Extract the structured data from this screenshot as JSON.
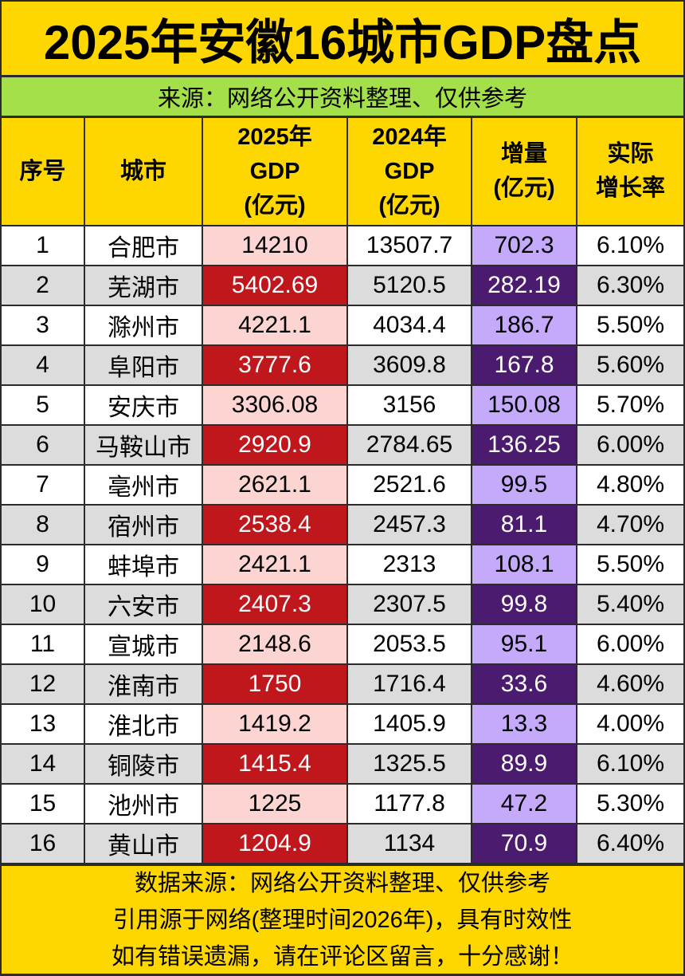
{
  "title": "2025年安徽16城市GDP盘点",
  "subtitle": "来源：网络公开资料整理、仅供参考",
  "colors": {
    "title_bg": "#ffd700",
    "subtitle_bg": "#a3e04a",
    "gdp25_light": "#fcd5d2",
    "gdp25_dark": "#c0171c",
    "increase_light": "#c5a9fb",
    "increase_dark": "#4b1b70",
    "row_alt": "#dcdcdc"
  },
  "table": {
    "headers": [
      {
        "lines": [
          "序号"
        ]
      },
      {
        "lines": [
          "城市"
        ]
      },
      {
        "lines": [
          "2025年",
          "GDP",
          "(亿元)"
        ]
      },
      {
        "lines": [
          "2024年",
          "GDP",
          "(亿元)"
        ]
      },
      {
        "lines": [
          "增量",
          "(亿元)"
        ]
      },
      {
        "lines": [
          "实际",
          "增长率"
        ]
      }
    ],
    "rows": [
      {
        "rank": "1",
        "city": "合肥市",
        "gdp2025": "14210",
        "gdp2024": "13507.7",
        "increase": "702.3",
        "growth": "6.10%"
      },
      {
        "rank": "2",
        "city": "芜湖市",
        "gdp2025": "5402.69",
        "gdp2024": "5120.5",
        "increase": "282.19",
        "growth": "6.30%"
      },
      {
        "rank": "3",
        "city": "滁州市",
        "gdp2025": "4221.1",
        "gdp2024": "4034.4",
        "increase": "186.7",
        "growth": "5.50%"
      },
      {
        "rank": "4",
        "city": "阜阳市",
        "gdp2025": "3777.6",
        "gdp2024": "3609.8",
        "increase": "167.8",
        "growth": "5.60%"
      },
      {
        "rank": "5",
        "city": "安庆市",
        "gdp2025": "3306.08",
        "gdp2024": "3156",
        "increase": "150.08",
        "growth": "5.70%"
      },
      {
        "rank": "6",
        "city": "马鞍山市",
        "gdp2025": "2920.9",
        "gdp2024": "2784.65",
        "increase": "136.25",
        "growth": "6.00%"
      },
      {
        "rank": "7",
        "city": "亳州市",
        "gdp2025": "2621.1",
        "gdp2024": "2521.6",
        "increase": "99.5",
        "growth": "4.80%"
      },
      {
        "rank": "8",
        "city": "宿州市",
        "gdp2025": "2538.4",
        "gdp2024": "2457.3",
        "increase": "81.1",
        "growth": "4.70%"
      },
      {
        "rank": "9",
        "city": "蚌埠市",
        "gdp2025": "2421.1",
        "gdp2024": "2313",
        "increase": "108.1",
        "growth": "5.50%"
      },
      {
        "rank": "10",
        "city": "六安市",
        "gdp2025": "2407.3",
        "gdp2024": "2307.5",
        "increase": "99.8",
        "growth": "5.40%"
      },
      {
        "rank": "11",
        "city": "宣城市",
        "gdp2025": "2148.6",
        "gdp2024": "2053.5",
        "increase": "95.1",
        "growth": "6.00%"
      },
      {
        "rank": "12",
        "city": "淮南市",
        "gdp2025": "1750",
        "gdp2024": "1716.4",
        "increase": "33.6",
        "growth": "4.60%"
      },
      {
        "rank": "13",
        "city": "淮北市",
        "gdp2025": "1419.2",
        "gdp2024": "1405.9",
        "increase": "13.3",
        "growth": "4.00%"
      },
      {
        "rank": "14",
        "city": "铜陵市",
        "gdp2025": "1415.4",
        "gdp2024": "1325.5",
        "increase": "89.9",
        "growth": "6.10%"
      },
      {
        "rank": "15",
        "city": "池州市",
        "gdp2025": "1225",
        "gdp2024": "1177.8",
        "increase": "47.2",
        "growth": "5.30%"
      },
      {
        "rank": "16",
        "city": "黄山市",
        "gdp2025": "1204.9",
        "gdp2024": "1134",
        "increase": "70.9",
        "growth": "6.40%"
      }
    ]
  },
  "footer": {
    "lines": [
      "数据来源：网络公开资料整理、仅供参考",
      "引用源于网络(整理时间2026年)，具有时效性",
      "如有错误遗漏，请在评论区留言，十分感谢！"
    ]
  }
}
